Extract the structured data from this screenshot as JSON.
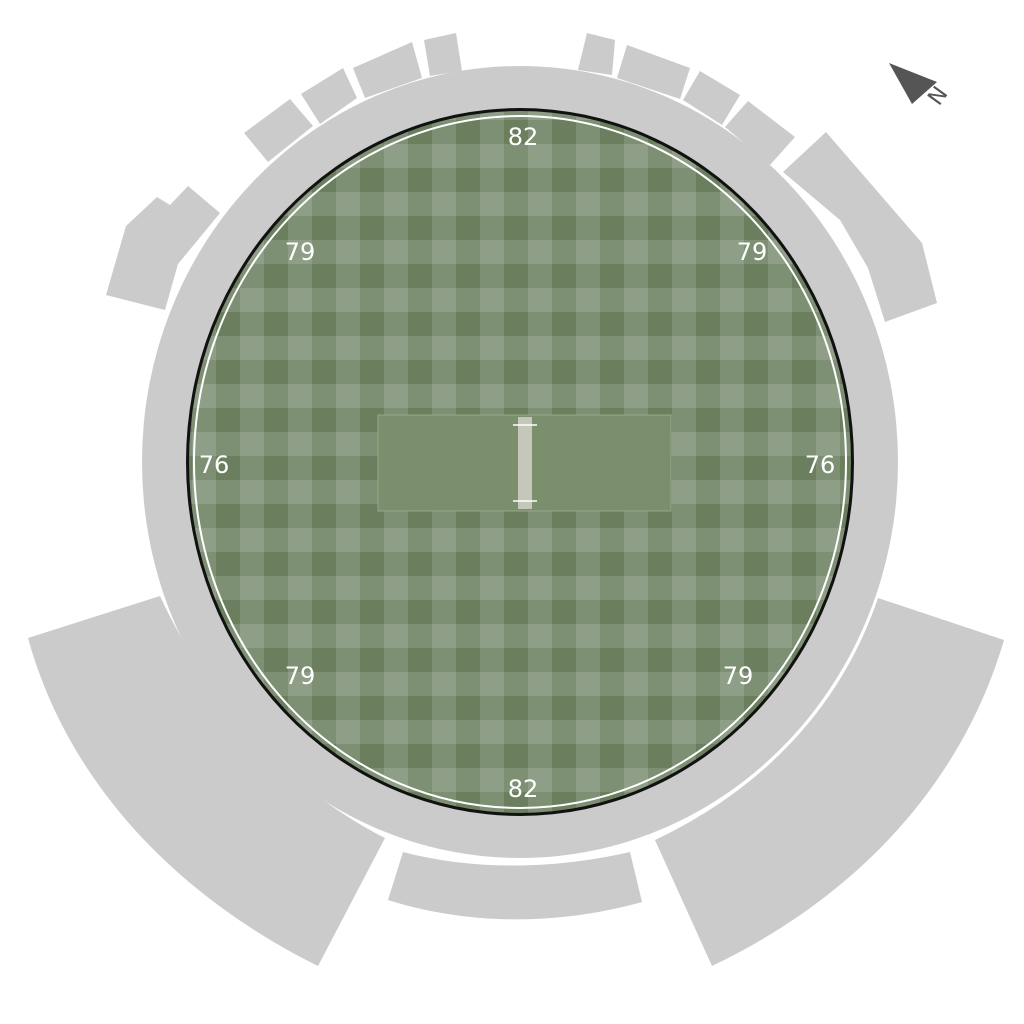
{
  "map": {
    "compass": {
      "icon": "north-arrow-icon",
      "letter": "N"
    },
    "boundary_distances": {
      "top": "82",
      "upper_left": "79",
      "upper_right": "79",
      "left": "76",
      "right": "76",
      "lower_left": "79",
      "lower_right": "79",
      "bottom": "82"
    },
    "colors": {
      "stands": "#cbcbcb",
      "field_dark": "#6b7f5f",
      "field_light": "#879d7c",
      "square": "#7c8f6d",
      "pitch": "#c4c7b9",
      "boundary_rope": "#ffffff",
      "fence": "#111111"
    }
  }
}
